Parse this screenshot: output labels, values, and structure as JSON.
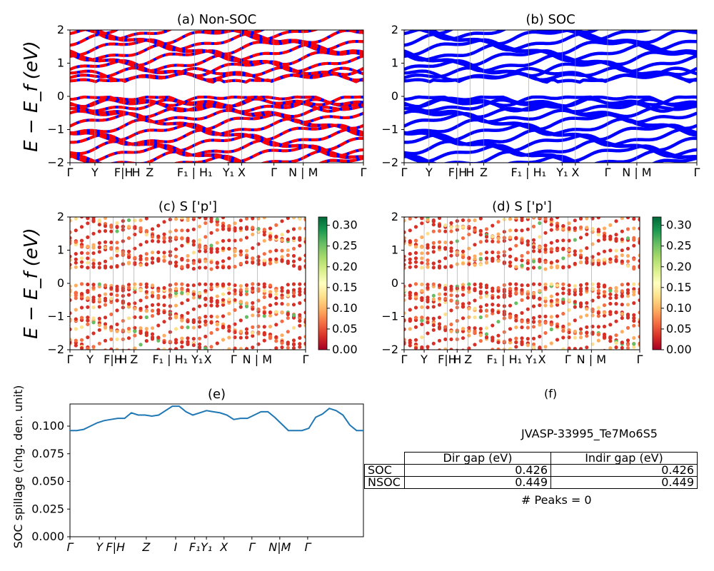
{
  "chart_data": [
    {
      "type": "line",
      "title": "(a) Non-SOC",
      "ylabel": "E − E_f (eV)",
      "ylim": [
        -2,
        2
      ],
      "yticks": [
        "−2",
        "−1",
        "0",
        "1",
        "2"
      ],
      "xtick_labels": [
        "Γ",
        "Y",
        "F|H",
        "H",
        "Z",
        "F₁ | H₁",
        "Y₁",
        "X",
        "Γ",
        "N | M",
        "Γ"
      ],
      "series_colors": [
        "#0000ff",
        "#ff0000"
      ],
      "band_summary": {
        "valence_max": -0.02,
        "conduction_min": 0.43
      }
    },
    {
      "type": "line",
      "title": "(b) SOC",
      "ylim": [
        -2,
        2
      ],
      "yticks": [
        "−2",
        "−1",
        "0",
        "1",
        "2"
      ],
      "xtick_labels": [
        "Γ",
        "Y",
        "F|H",
        "H",
        "Z",
        "F₁ | H₁",
        "Y₁",
        "X",
        "Γ",
        "N | M",
        "Γ"
      ],
      "series_colors": [
        "#0000ff"
      ]
    },
    {
      "type": "scatter",
      "title": "(c)  S ['p']",
      "ylabel": "E − E_f (eV)",
      "ylim": [
        -2,
        2
      ],
      "yticks": [
        "−2",
        "−1",
        "0",
        "1",
        "2"
      ],
      "xtick_labels": [
        "Γ",
        "Y",
        "F|H",
        "H",
        "Z",
        "F₁ | H₁",
        "Y₁",
        "X",
        "Γ",
        "N | M",
        "Γ"
      ],
      "colorbar": {
        "min": 0.0,
        "max": 0.32,
        "ticks": [
          "0.00",
          "0.05",
          "0.10",
          "0.15",
          "0.20",
          "0.25",
          "0.30"
        ]
      }
    },
    {
      "type": "scatter",
      "title": "(d) S ['p']",
      "ylim": [
        -2,
        2
      ],
      "yticks": [
        "−2",
        "−1",
        "0",
        "1",
        "2"
      ],
      "xtick_labels": [
        "Γ",
        "Y",
        "F|H",
        "H",
        "Z",
        "F₁ | H₁",
        "Y₁",
        "X",
        "Γ",
        "N | M",
        "Γ"
      ],
      "colorbar": {
        "min": 0.0,
        "max": 0.32,
        "ticks": [
          "0.00",
          "0.05",
          "0.10",
          "0.15",
          "0.20",
          "0.25",
          "0.30"
        ]
      }
    },
    {
      "type": "line",
      "title": "(e)",
      "ylabel": "SOC spillage (chg. den. unit)",
      "ylim": [
        0,
        0.12
      ],
      "yticks": [
        "0.000",
        "0.025",
        "0.050",
        "0.075",
        "0.100"
      ],
      "xtick_labels": [
        "Γ",
        "Y",
        "F|H",
        "Z",
        "I",
        "F₁",
        "Y₁",
        "X",
        "Γ",
        "N|M",
        "Γ"
      ],
      "series": [
        {
          "color": "#1f77b4",
          "values": [
            0.096,
            0.096,
            0.097,
            0.1,
            0.103,
            0.105,
            0.106,
            0.107,
            0.107,
            0.112,
            0.11,
            0.11,
            0.109,
            0.11,
            0.114,
            0.118,
            0.118,
            0.113,
            0.11,
            0.112,
            0.114,
            0.113,
            0.112,
            0.11,
            0.106,
            0.107,
            0.107,
            0.11,
            0.113,
            0.113,
            0.108,
            0.102,
            0.096,
            0.096,
            0.096,
            0.098,
            0.108,
            0.111,
            0.116,
            0.114,
            0.11,
            0.101,
            0.096,
            0.096
          ]
        }
      ]
    }
  ],
  "panel_f": {
    "label": "(f)",
    "material": "JVASP-33995_Te7Mo6S5",
    "table": {
      "columns": [
        "Dir gap (eV)",
        "Indir gap (eV)"
      ],
      "rows": [
        {
          "label": "SOC",
          "dir": "0.426",
          "indir": "0.426"
        },
        {
          "label": "NSOC",
          "dir": "0.449",
          "indir": "0.449"
        }
      ]
    },
    "peaks": "# Peaks = 0"
  }
}
